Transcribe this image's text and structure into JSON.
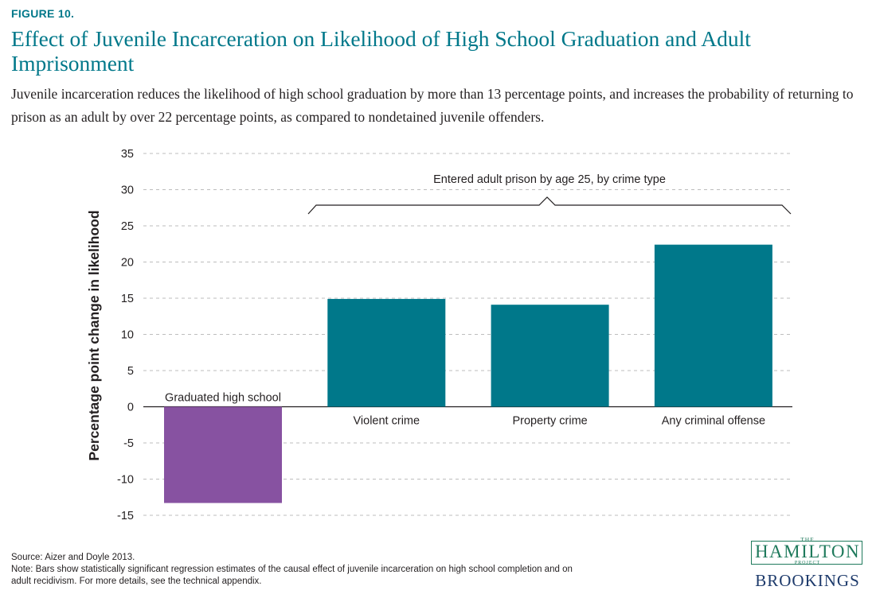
{
  "figure_label": "FIGURE 10.",
  "title": "Effect of Juvenile Incarceration on Likelihood of High School Graduation and Adult Imprisonment",
  "subtitle": "Juvenile incarceration reduces the likelihood of high school graduation by more than 13 percentage points, and increases the probability of returning to prison as an adult by over 22 percentage points, as compared to nondetained juvenile offenders.",
  "chart_data": {
    "type": "bar",
    "categories": [
      "Graduated high school",
      "Violent crime",
      "Property crime",
      "Any criminal offense"
    ],
    "values": [
      -13.3,
      14.9,
      14.1,
      22.4
    ],
    "bar_colors": [
      "#8752a1",
      "#00788a",
      "#00788a",
      "#00788a"
    ],
    "ylabel": "Percentage point change in likelihood",
    "ylim": [
      -15,
      35
    ],
    "yticks": [
      35,
      30,
      25,
      20,
      15,
      10,
      5,
      0,
      -5,
      -10,
      -15
    ],
    "ytick_labels": [
      "35",
      "30",
      "25",
      "20",
      "15",
      "10",
      "5",
      "0",
      "-5",
      "-10",
      "-15"
    ],
    "grid": true,
    "group_annotation": "Entered adult prison by age 25, by crime type"
  },
  "source": "Source: Aizer and Doyle 2013.",
  "note_line1": "Note: Bars show statistically significant regression estimates of the causal effect of juvenile incarceration on high school completion and on",
  "note_line2": "adult recidivism. For more details, see the technical appendix.",
  "logo": {
    "the": "THE",
    "hamilton": "HAMILTON",
    "project": "PROJECT",
    "brookings": "BROOKINGS"
  },
  "colors": {
    "accent": "#00788a",
    "purple_bar": "#8752a1",
    "teal_bar": "#00788a",
    "grid": "#bdbdbd"
  }
}
